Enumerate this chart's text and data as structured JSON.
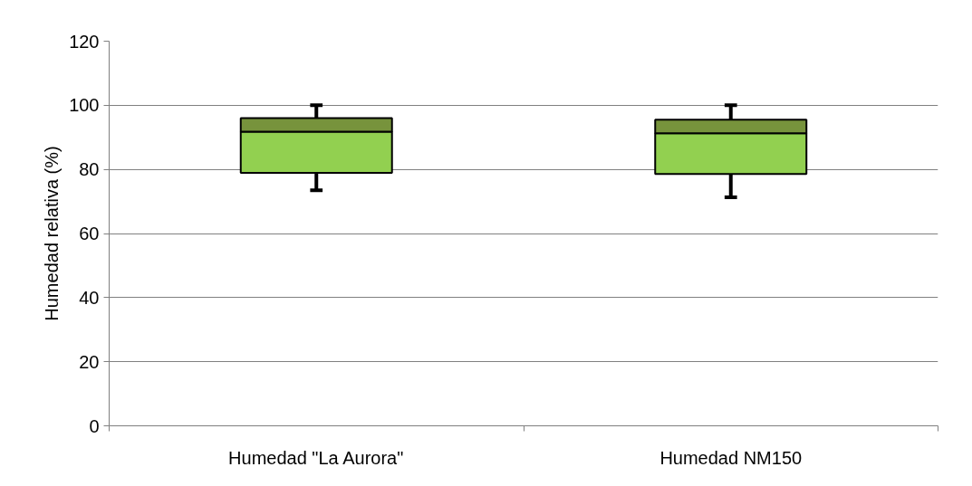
{
  "chart_data": {
    "type": "box",
    "ylabel": "Humedad relativa (%)",
    "categories": [
      "Humedad \"La Aurora\"",
      "Humedad NM150"
    ],
    "boxes": [
      {
        "low": 73.5,
        "q1": 78.9,
        "median": 91.8,
        "q3": 96,
        "high": 100
      },
      {
        "low": 71.3,
        "q1": 78.6,
        "median": 91.3,
        "q3": 95.5,
        "high": 100
      }
    ],
    "colors": [
      [
        "#92d050",
        "#77933c"
      ],
      [
        "#92d050",
        "#77933c"
      ]
    ],
    "ylim": [
      0,
      120
    ],
    "yticks": [
      0,
      20,
      40,
      60,
      80,
      100,
      120
    ],
    "grid": "y"
  }
}
